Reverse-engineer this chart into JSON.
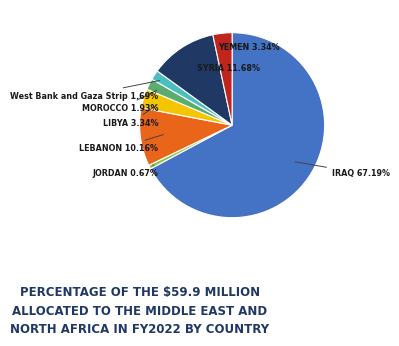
{
  "labels": [
    "IRAQ",
    "JORDAN",
    "LEBANON",
    "LIBYA",
    "MOROCCO",
    "West Bank and Gaza Strip",
    "SYRIA",
    "YEMEN"
  ],
  "values": [
    67.19,
    0.67,
    10.16,
    3.34,
    1.93,
    1.69,
    11.68,
    3.34
  ],
  "colors": [
    "#4472C4",
    "#C8E0A0",
    "#E8651A",
    "#F5C500",
    "#5BAD6F",
    "#4BBFBF",
    "#1F3864",
    "#C0251D"
  ],
  "title_line1": "PERCENTAGE OF THE $59.9 MILLION",
  "title_line2": "ALLOCATED TO THE MIDDLE EAST AND",
  "title_line3": "NORTH AFRICA IN FY2022 BY COUNTRY",
  "title_color": "#1F3864",
  "label_color": "#1a1a1a",
  "background_color": "#FFFFFF",
  "startangle": 90
}
